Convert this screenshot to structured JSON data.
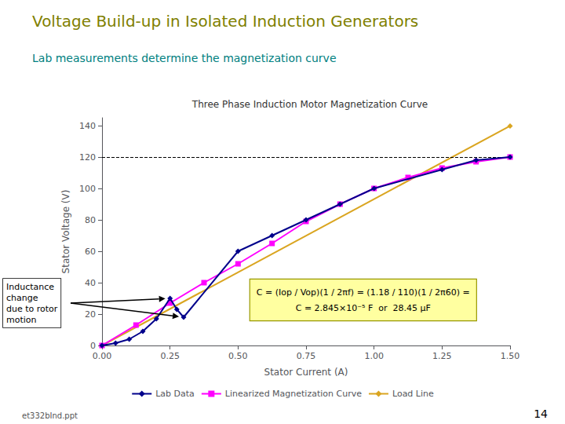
{
  "chart_data": {
    "type": "line",
    "title": "Voltage Build-up in Isolated Induction Generators",
    "title_color": "#808000",
    "subtitle": "Lab measurements determine the magnetization curve",
    "subtitle_color": "#008080",
    "plot_title": "Three Phase Induction Motor Magnetization Curve",
    "xlabel": "Stator Current (A)",
    "ylabel": "Stator Voltage (V)",
    "background": "#ffffff",
    "series": [
      {
        "name": "Lab Data",
        "color": "#00008B",
        "marker": "diamond",
        "x": [
          0.0,
          0.05,
          0.1,
          0.15,
          0.2,
          0.25,
          0.275,
          0.3,
          0.5,
          0.625,
          0.75,
          0.875,
          1.0,
          1.25,
          1.375,
          1.5
        ],
        "values": [
          0.0,
          1.5,
          4.0,
          9.0,
          17.0,
          30.0,
          23.0,
          18.0,
          60.0,
          70.0,
          80.0,
          90.0,
          100.0,
          112.0,
          118.0,
          120.0
        ]
      },
      {
        "name": "Linearized Magnetization Curve",
        "color": "#FF00FF",
        "marker": "square",
        "x": [
          0.0,
          0.125,
          0.25,
          0.375,
          0.5,
          0.625,
          0.75,
          0.875,
          1.0,
          1.125,
          1.25,
          1.375,
          1.5
        ],
        "values": [
          0.0,
          13.0,
          27.0,
          40.0,
          52.0,
          65.0,
          79.0,
          90.0,
          100.0,
          107.0,
          113.0,
          117.0,
          120.0
        ]
      },
      {
        "name": "Load Line",
        "color": "#DAA520",
        "marker": "diamond",
        "x": [
          0.0,
          1.5
        ],
        "values": [
          0.0,
          139.8
        ]
      }
    ],
    "hline": {
      "value": 120.0,
      "line_style": "dashed",
      "color": "#000000"
    },
    "xlim": [
      0.0,
      1.5
    ],
    "xticks": [
      {
        "value": 0.0,
        "label": "0.00"
      },
      {
        "value": 0.25,
        "label": "0.25"
      },
      {
        "value": 0.5,
        "label": "0.50"
      },
      {
        "value": 0.75,
        "label": "0.75"
      },
      {
        "value": 1.0,
        "label": "1.00"
      },
      {
        "value": 1.25,
        "label": "1.25"
      },
      {
        "value": 1.5,
        "label": "1.50"
      }
    ],
    "ylim": [
      0,
      145
    ],
    "yticks": [
      0,
      20,
      40,
      60,
      80,
      100,
      120,
      140
    ],
    "grid": false,
    "legend": "bottom",
    "annotations": [
      {
        "text": "C = (Iop / Vop)(1 / 2πf) = (1.18 / 110)(1 / 2π60) =\nC = 2.845×10⁻⁵ F  or  28.45 μF",
        "color": "#FFFFA0",
        "edge_color": "#999900"
      },
      {
        "text": "Inductance\nchange\ndue to rotor\nmotion",
        "color": "#ffffff",
        "edge_color": "#000000"
      }
    ],
    "footer_left": "et332bInd.ppt",
    "footer_right": "14"
  }
}
